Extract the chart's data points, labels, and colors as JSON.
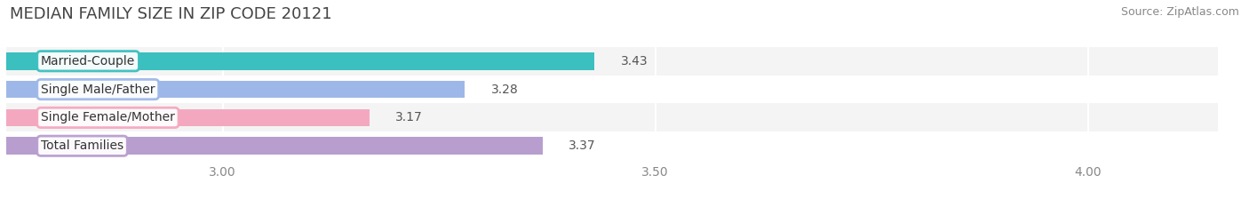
{
  "title": "MEDIAN FAMILY SIZE IN ZIP CODE 20121",
  "source": "Source: ZipAtlas.com",
  "categories": [
    "Married-Couple",
    "Single Male/Father",
    "Single Female/Mother",
    "Total Families"
  ],
  "values": [
    3.43,
    3.28,
    3.17,
    3.37
  ],
  "bar_colors": [
    "#3bbfbf",
    "#9db8e8",
    "#f4a8c0",
    "#b89ece"
  ],
  "xlim_left": 2.75,
  "xlim_right": 4.15,
  "xticks": [
    3.0,
    3.5,
    4.0
  ],
  "bar_height": 0.62,
  "background_color": "#ffffff",
  "row_bg_colors": [
    "#f0f0f0",
    "#ffffff",
    "#f0f0f0",
    "#ffffff"
  ],
  "separator_color": "#e0e0e0",
  "title_fontsize": 13,
  "label_fontsize": 10,
  "value_fontsize": 10,
  "source_fontsize": 9,
  "tick_fontsize": 10
}
